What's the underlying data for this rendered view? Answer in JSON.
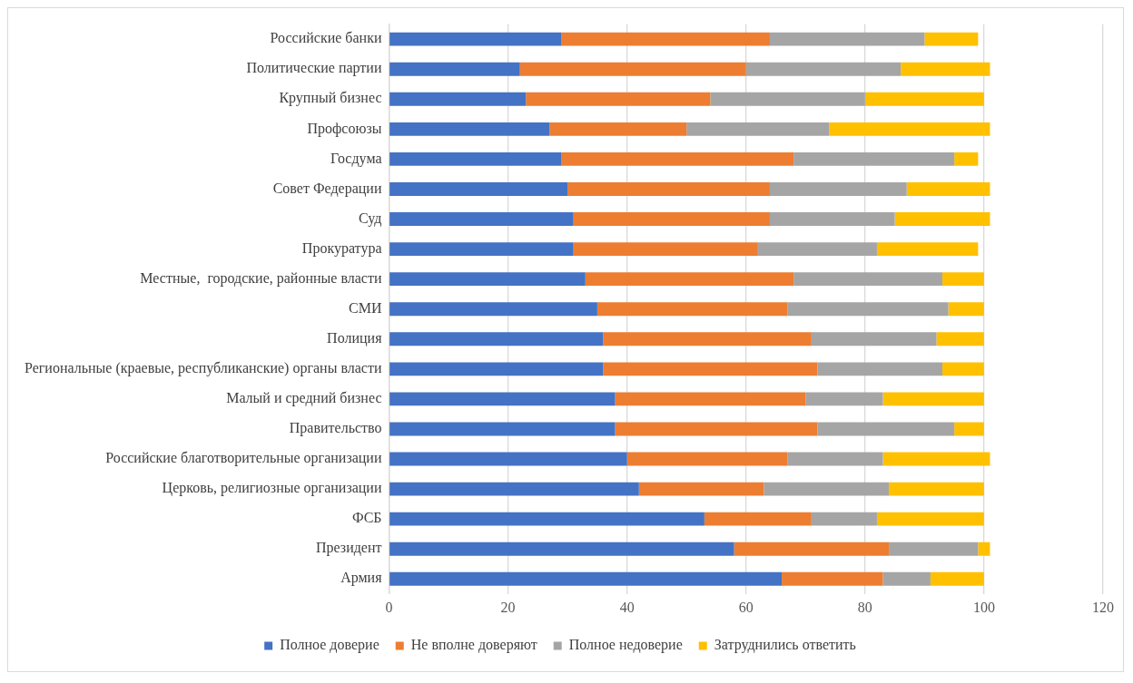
{
  "chart_data": {
    "type": "bar",
    "orientation": "horizontal",
    "stacked": true,
    "categories": [
      "Российские банки",
      "Политические партии",
      "Крупный бизнес",
      "Профсоюзы",
      "Госдума",
      "Совет Федерации",
      "Суд",
      "Прокуратура",
      "Местные,  городские, районные власти",
      "СМИ",
      "Полиция",
      "Региональные (краевые, республиканские) органы власти",
      "Малый и средний бизнес",
      "Правительство",
      "Российские благотворительные организации",
      "Церковь, религиозные организации",
      "ФСБ",
      "Президент",
      "Армия"
    ],
    "series": [
      {
        "name": "Полное доверие",
        "color": "#4472c4",
        "values": [
          29,
          22,
          23,
          27,
          29,
          30,
          31,
          31,
          33,
          35,
          36,
          36,
          38,
          38,
          40,
          42,
          53,
          58,
          66
        ]
      },
      {
        "name": "Не вполне доверяют",
        "color": "#ed7d31",
        "values": [
          35,
          38,
          31,
          23,
          39,
          34,
          33,
          31,
          35,
          32,
          35,
          36,
          32,
          34,
          27,
          21,
          18,
          26,
          17
        ]
      },
      {
        "name": "Полное недоверие",
        "color": "#a5a5a5",
        "values": [
          26,
          26,
          26,
          24,
          27,
          23,
          21,
          20,
          25,
          27,
          21,
          21,
          13,
          23,
          16,
          21,
          11,
          15,
          8
        ]
      },
      {
        "name": "Затруднились ответить",
        "color": "#ffc000",
        "values": [
          9,
          15,
          20,
          27,
          4,
          14,
          16,
          17,
          7,
          6,
          8,
          7,
          17,
          5,
          18,
          16,
          18,
          2,
          9
        ]
      }
    ],
    "xlim": [
      0,
      120
    ],
    "xticks": [
      0,
      20,
      40,
      60,
      80,
      100,
      120
    ],
    "grid": "x",
    "legend": "bottom"
  }
}
